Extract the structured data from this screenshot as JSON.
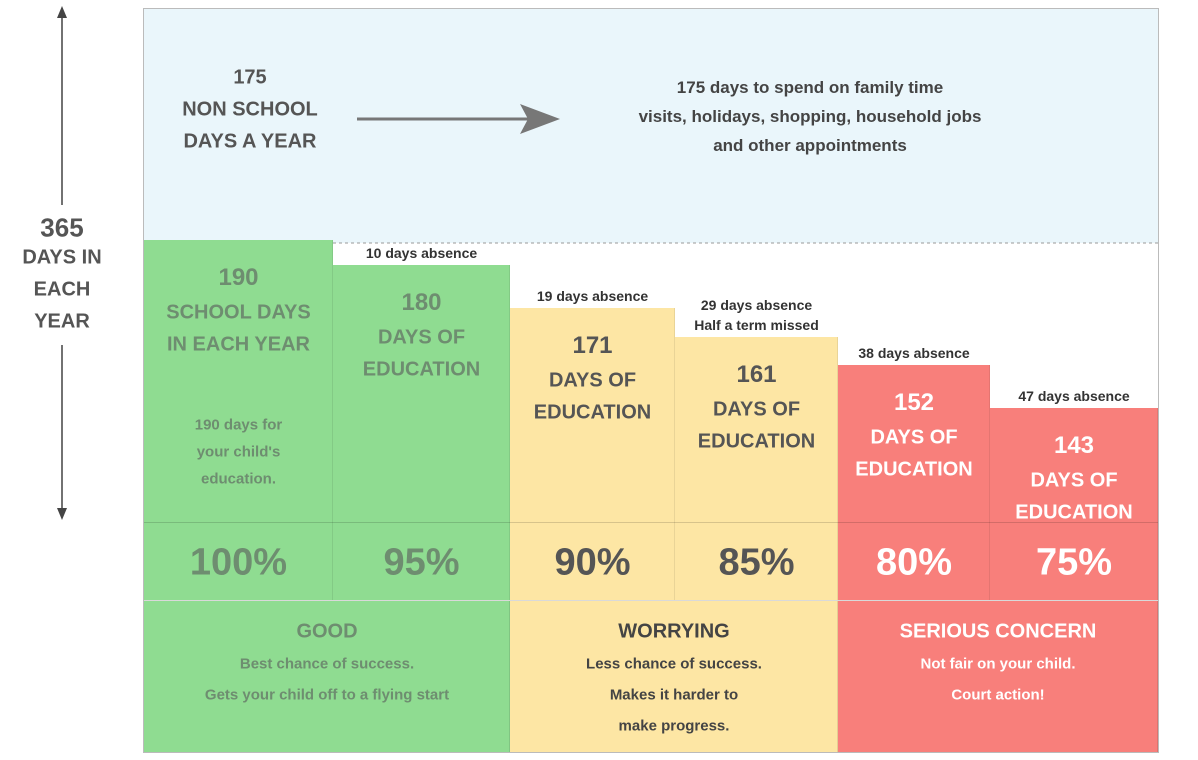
{
  "axis_label_lines": [
    "365",
    "DAYS IN",
    "EACH",
    "YEAR"
  ],
  "top": {
    "number_lines": [
      "175",
      "NON SCHOOL",
      "DAYS A YEAR"
    ],
    "description_lines": [
      "175 days to spend on family time",
      "visits, holidays, shopping, household jobs",
      "and other appointments"
    ]
  },
  "columns": [
    {
      "absence_lines": [],
      "number": "190",
      "label_lines": [
        "SCHOOL DAYS",
        "IN EACH YEAR"
      ],
      "note_lines": [
        "190 days for",
        "your child's",
        "education."
      ],
      "percent": "100%"
    },
    {
      "absence_lines": [
        "10 days absence"
      ],
      "number": "180",
      "label_lines": [
        "DAYS OF",
        "EDUCATION"
      ],
      "note_lines": [],
      "percent": "95%"
    },
    {
      "absence_lines": [
        "19 days absence"
      ],
      "number": "171",
      "label_lines": [
        "DAYS OF",
        "EDUCATION"
      ],
      "note_lines": [],
      "percent": "90%"
    },
    {
      "absence_lines": [
        "29 days absence",
        "Half a term missed"
      ],
      "number": "161",
      "label_lines": [
        "DAYS OF",
        "EDUCATION"
      ],
      "note_lines": [],
      "percent": "85%"
    },
    {
      "absence_lines": [
        "38 days absence"
      ],
      "number": "152",
      "label_lines": [
        "DAYS OF",
        "EDUCATION"
      ],
      "note_lines": [],
      "percent": "80%"
    },
    {
      "absence_lines": [
        "47 days absence"
      ],
      "number": "143",
      "label_lines": [
        "DAYS OF",
        "EDUCATION"
      ],
      "note_lines": [],
      "percent": "75%"
    }
  ],
  "groups": [
    {
      "title": "GOOD",
      "lines": [
        "Best chance of  success.",
        "Gets your child off to a flying start"
      ]
    },
    {
      "title": "WORRYING",
      "lines": [
        "Less chance of success.",
        "Makes it harder to",
        "make progress."
      ]
    },
    {
      "title": "SERIOUS CONCERN",
      "lines": [
        "Not fair on your child.",
        "Court action!"
      ]
    }
  ]
}
